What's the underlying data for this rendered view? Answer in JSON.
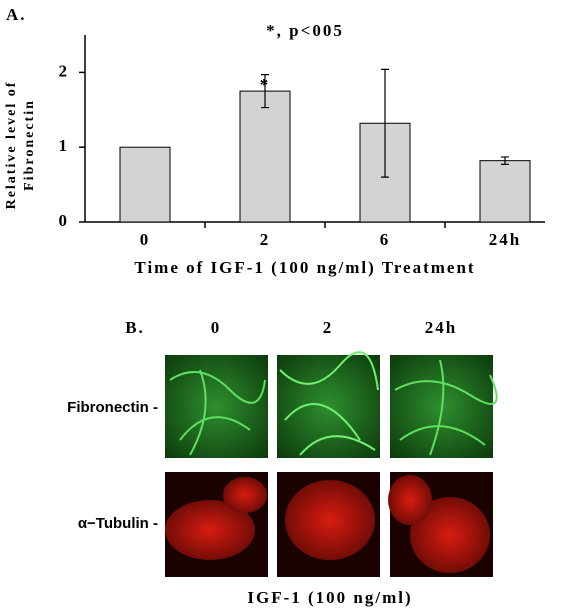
{
  "chart_data": {
    "type": "bar",
    "panel_label": "A.",
    "annotation": "*, p<005",
    "significance_marker": "*",
    "y_label": [
      "Relative level of",
      "Fibronectin"
    ],
    "x_label": "Time of IGF-1 (100 ng/ml) Treatment",
    "categories": [
      "0",
      "2",
      "6",
      "24h"
    ],
    "values": [
      1,
      1.75,
      1.32,
      0.82
    ],
    "errors": [
      null,
      0.22,
      0.72,
      0.05
    ],
    "color": "#d3d3d3",
    "ylim": [
      0,
      2.5
    ],
    "yticks": [
      0,
      1,
      2
    ]
  },
  "panel_b": {
    "panel_label": "B.",
    "columns": [
      "0",
      "2",
      "24h"
    ],
    "rows": [
      "Fibronectin -",
      "α−Tubulin -"
    ],
    "x_label": "IGF-1 (100 ng/ml)"
  }
}
